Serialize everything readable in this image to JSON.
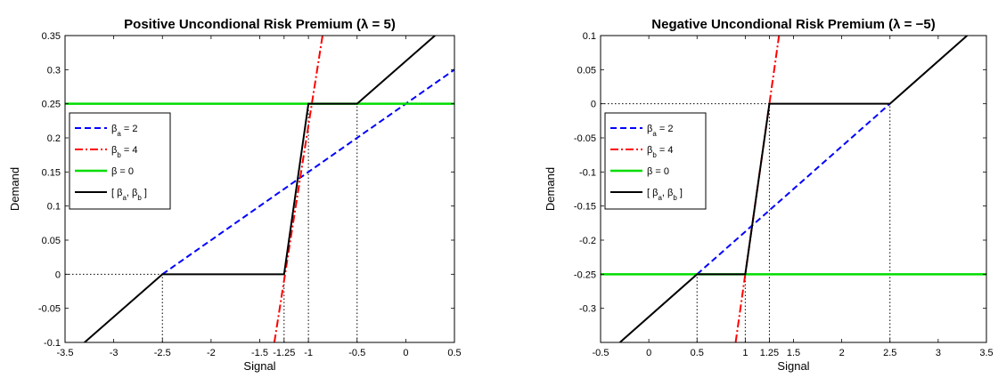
{
  "chart_data": [
    {
      "type": "line",
      "title": "Positive Uncondional Risk Premium (λ = 5)",
      "xlabel": "Signal",
      "ylabel": "Demand",
      "xlim": [
        -3.5,
        0.5
      ],
      "ylim": [
        -0.1,
        0.35
      ],
      "xticks": [
        {
          "v": -3.5,
          "label": "-3.5"
        },
        {
          "v": -3,
          "label": "-3"
        },
        {
          "v": -2.5,
          "label": "-2.5"
        },
        {
          "v": -2,
          "label": "-2"
        },
        {
          "v": -1.5,
          "label": "-1.5"
        },
        {
          "v": -1.25,
          "label": "-1.25"
        },
        {
          "v": -1,
          "label": "-1"
        },
        {
          "v": -0.5,
          "label": "-0.5"
        },
        {
          "v": 0,
          "label": "0"
        },
        {
          "v": 0.5,
          "label": "0.5"
        }
      ],
      "yticks": [
        {
          "v": -0.1,
          "label": "-0.1"
        },
        {
          "v": -0.05,
          "label": "-0.05"
        },
        {
          "v": 0,
          "label": "0"
        },
        {
          "v": 0.05,
          "label": "0.05"
        },
        {
          "v": 0.1,
          "label": "0.1"
        },
        {
          "v": 0.15,
          "label": "0.15"
        },
        {
          "v": 0.2,
          "label": "0.2"
        },
        {
          "v": 0.25,
          "label": "0.25"
        },
        {
          "v": 0.3,
          "label": "0.3"
        },
        {
          "v": 0.35,
          "label": "0.35"
        }
      ],
      "legend_position": "left",
      "series": [
        {
          "name": "β_a = 2",
          "color": "#0000ff",
          "style": "dashed",
          "width": 2,
          "x": [
            -2.5,
            0.5
          ],
          "y": [
            0,
            0.3
          ]
        },
        {
          "name": "β_b = 4",
          "color": "#ff0000",
          "style": "dashdot",
          "width": 2,
          "x": [
            -1.35,
            -0.8
          ],
          "y": [
            -0.1,
            0.4
          ]
        },
        {
          "name": "β = 0",
          "color": "#00dd00",
          "style": "solid",
          "width": 2.5,
          "x": [
            -3.5,
            0.5
          ],
          "y": [
            0.25,
            0.25
          ]
        },
        {
          "name": "[ β_a, β_b ]",
          "color": "#000000",
          "style": "solid",
          "width": 2,
          "x": [
            -3.3,
            -2.5,
            -1.25,
            -1,
            -0.5,
            0.3
          ],
          "y": [
            -0.1,
            0,
            0,
            0.25,
            0.25,
            0.35
          ]
        }
      ],
      "reference_lines": [
        {
          "x": [
            -3.5,
            -2.5
          ],
          "y": [
            0,
            0
          ]
        },
        {
          "x": [
            -2.5,
            -2.5
          ],
          "y": [
            -0.1,
            0
          ]
        },
        {
          "x": [
            -1.25,
            -1.25
          ],
          "y": [
            -0.1,
            0
          ]
        },
        {
          "x": [
            -1,
            -1
          ],
          "y": [
            -0.1,
            0.25
          ]
        },
        {
          "x": [
            -0.5,
            -0.5
          ],
          "y": [
            -0.1,
            0.25
          ]
        }
      ]
    },
    {
      "type": "line",
      "title": "Negative Uncondional Risk Premium (λ = −5)",
      "xlabel": "Signal",
      "ylabel": "Demand",
      "xlim": [
        -0.5,
        3.5
      ],
      "ylim": [
        -0.35,
        0.1
      ],
      "xticks": [
        {
          "v": -0.5,
          "label": "-0.5"
        },
        {
          "v": 0,
          "label": "0"
        },
        {
          "v": 0.5,
          "label": "0.5"
        },
        {
          "v": 1,
          "label": "1"
        },
        {
          "v": 1.25,
          "label": "1.25"
        },
        {
          "v": 1.5,
          "label": "1.5"
        },
        {
          "v": 2,
          "label": "2"
        },
        {
          "v": 2.5,
          "label": "2.5"
        },
        {
          "v": 3,
          "label": "3"
        },
        {
          "v": 3.5,
          "label": "3.5"
        }
      ],
      "yticks": [
        {
          "v": -0.3,
          "label": "-0.3"
        },
        {
          "v": -0.25,
          "label": "-0.25"
        },
        {
          "v": -0.2,
          "label": "-0.2"
        },
        {
          "v": -0.15,
          "label": "-0.15"
        },
        {
          "v": -0.1,
          "label": "-0.1"
        },
        {
          "v": -0.05,
          "label": "-0.05"
        },
        {
          "v": 0,
          "label": "0"
        },
        {
          "v": 0.05,
          "label": "0.05"
        },
        {
          "v": 0.1,
          "label": "0.1"
        }
      ],
      "legend_position": "left",
      "series": [
        {
          "name": "β_a = 2",
          "color": "#0000ff",
          "style": "dashed",
          "width": 2,
          "x": [
            0.5,
            2.5
          ],
          "y": [
            -0.25,
            0
          ]
        },
        {
          "name": "β_b = 4",
          "color": "#ff0000",
          "style": "dashdot",
          "width": 2,
          "x": [
            0.9,
            1.35
          ],
          "y": [
            -0.35,
            0.1
          ]
        },
        {
          "name": "β = 0",
          "color": "#00dd00",
          "style": "solid",
          "width": 2.5,
          "x": [
            -0.5,
            3.5
          ],
          "y": [
            -0.25,
            -0.25
          ]
        },
        {
          "name": "[ β_a, β_b ]",
          "color": "#000000",
          "style": "solid",
          "width": 2,
          "x": [
            -0.3,
            0.5,
            1,
            1.25,
            2.5,
            3.3
          ],
          "y": [
            -0.35,
            -0.25,
            -0.25,
            0,
            0,
            0.1
          ]
        }
      ],
      "reference_lines": [
        {
          "x": [
            -0.5,
            1.25
          ],
          "y": [
            0,
            0
          ]
        },
        {
          "x": [
            0.5,
            0.5
          ],
          "y": [
            -0.35,
            -0.25
          ]
        },
        {
          "x": [
            1,
            1
          ],
          "y": [
            -0.35,
            -0.25
          ]
        },
        {
          "x": [
            1.25,
            1.25
          ],
          "y": [
            -0.35,
            0
          ]
        },
        {
          "x": [
            2.5,
            2.5
          ],
          "y": [
            -0.35,
            0
          ]
        }
      ]
    }
  ]
}
